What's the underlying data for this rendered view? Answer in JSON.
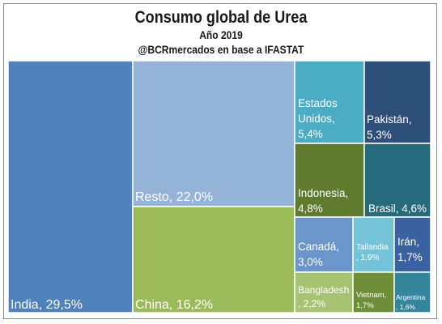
{
  "header": {
    "title": "Consumo global de Urea",
    "subtitle": "Año 2019",
    "source": "@BCRmercados en base a IFASTAT"
  },
  "chart_data": {
    "type": "treemap",
    "title": "Consumo global de Urea",
    "subtitle": "Año 2019",
    "unit": "%",
    "nodes": [
      {
        "name": "India",
        "value": 29.5,
        "label_lines": [
          "India, 29,5%"
        ],
        "color": "#4f81bd"
      },
      {
        "name": "Resto",
        "value": 22.0,
        "label_lines": [
          "Resto, 22,0%"
        ],
        "color": "#95b3d7"
      },
      {
        "name": "China",
        "value": 16.2,
        "label_lines": [
          "China, 16,2%"
        ],
        "color": "#9bbb59"
      },
      {
        "name": "Estados Unidos",
        "value": 5.4,
        "label_lines": [
          "Estados",
          "Unidos,",
          "5,4%"
        ],
        "color": "#4bacc6"
      },
      {
        "name": "Pakistán",
        "value": 5.3,
        "label_lines": [
          "Pakistán,",
          "5,3%"
        ],
        "color": "#2e4f7a"
      },
      {
        "name": "Indonesia",
        "value": 4.8,
        "label_lines": [
          "Indonesia,",
          "4,8%"
        ],
        "color": "#5e7b2f"
      },
      {
        "name": "Brasil",
        "value": 4.6,
        "label_lines": [
          "Brasil, 4,6%"
        ],
        "color": "#276a7c"
      },
      {
        "name": "Canadá",
        "value": 3.0,
        "label_lines": [
          "Canadá,",
          "3,0%"
        ],
        "color": "#6a96cc"
      },
      {
        "name": "Tailandia",
        "value": 1.9,
        "label_lines": [
          "Tailandia",
          ", 1,9%"
        ],
        "color": "#74c3d8"
      },
      {
        "name": "Irán",
        "value": 1.7,
        "label_lines": [
          "Irán,",
          "1,7%"
        ],
        "color": "#3a62a0"
      },
      {
        "name": "Bangladesh",
        "value": 2.2,
        "label_lines": [
          "Bangladesh",
          ", 2,2%"
        ],
        "color": "#a6c272"
      },
      {
        "name": "Vietnam",
        "value": 1.7,
        "label_lines": [
          "Vietnam,",
          "1,7%"
        ],
        "color": "#6f8e38"
      },
      {
        "name": "Argentina",
        "value": 1.6,
        "label_lines": [
          "Argentina",
          ", 1,6%"
        ],
        "color": "#33869b"
      }
    ]
  }
}
